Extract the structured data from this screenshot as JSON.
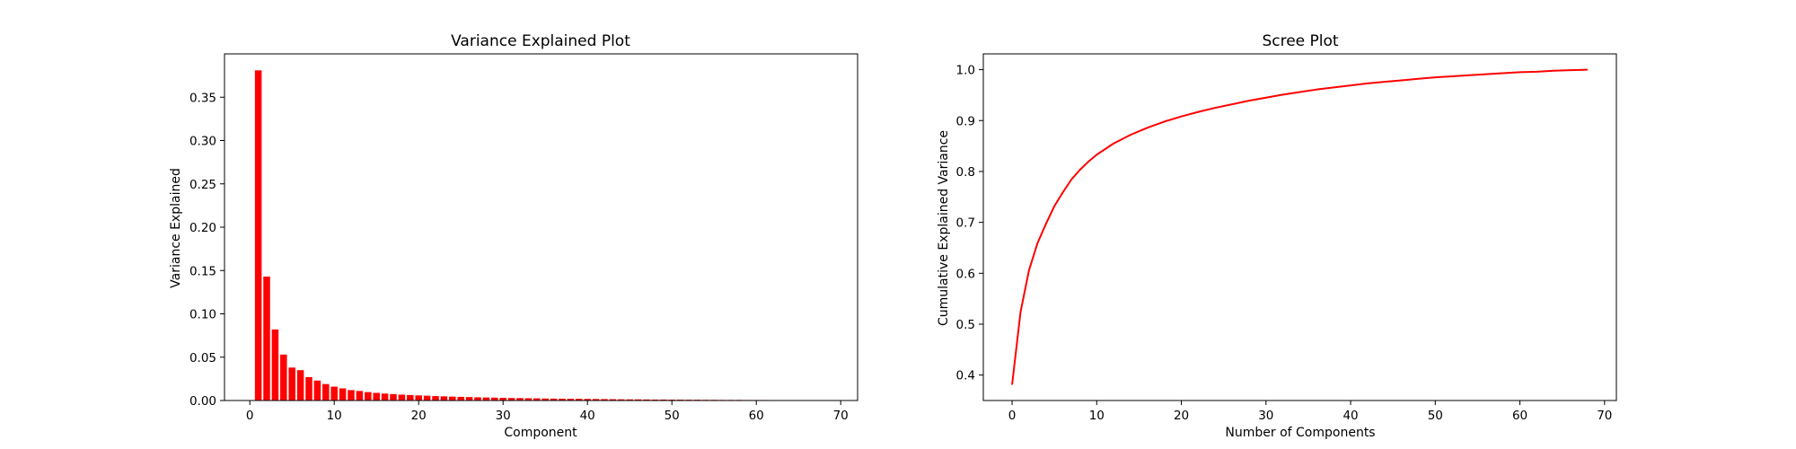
{
  "chart_data": [
    {
      "type": "bar",
      "title": "Variance Explained Plot",
      "xlabel": "Component",
      "ylabel": "Variance Explained",
      "xlim": [
        -3,
        72
      ],
      "ylim": [
        0,
        0.4
      ],
      "xticks": [
        "0",
        "10",
        "20",
        "30",
        "40",
        "50",
        "60",
        "70"
      ],
      "yticks": [
        "0.00",
        "0.05",
        "0.10",
        "0.15",
        "0.20",
        "0.25",
        "0.30",
        "0.35"
      ],
      "color": "#ff0000",
      "x": [
        1,
        2,
        3,
        4,
        5,
        6,
        7,
        8,
        9,
        10,
        11,
        12,
        13,
        14,
        15,
        16,
        17,
        18,
        19,
        20,
        21,
        22,
        23,
        24,
        25,
        26,
        27,
        28,
        29,
        30,
        31,
        32,
        33,
        34,
        35,
        36,
        37,
        38,
        39,
        40,
        41,
        42,
        43,
        44,
        45,
        46,
        47,
        48,
        49,
        50,
        51,
        52,
        53,
        54,
        55,
        56,
        57,
        58,
        59,
        60,
        61,
        62,
        63,
        64,
        65
      ],
      "values": [
        0.381,
        0.143,
        0.082,
        0.053,
        0.038,
        0.035,
        0.027,
        0.023,
        0.019,
        0.016,
        0.014,
        0.012,
        0.011,
        0.0097,
        0.0088,
        0.008,
        0.0074,
        0.0068,
        0.0063,
        0.0059,
        0.0055,
        0.0051,
        0.0048,
        0.0045,
        0.0042,
        0.004,
        0.0037,
        0.0035,
        0.0033,
        0.0031,
        0.0029,
        0.0028,
        0.0026,
        0.0025,
        0.0023,
        0.0022,
        0.0021,
        0.002,
        0.0019,
        0.0018,
        0.0017,
        0.0016,
        0.0015,
        0.0014,
        0.0013,
        0.0013,
        0.0012,
        0.0011,
        0.0011,
        0.001,
        0.001,
        0.0009,
        0.0009,
        0.0008,
        0.0008,
        0.0007,
        0.0007,
        0.0007,
        0.0006,
        0.0006,
        0.0006,
        0.0005,
        0.0005,
        0.0005,
        0.0004
      ]
    },
    {
      "type": "line",
      "title": "Scree Plot",
      "xlabel": "Number of Components",
      "ylabel": "Cumulative Explained Variance",
      "xlim": [
        -3.4,
        71.4
      ],
      "ylim": [
        0.35,
        1.031
      ],
      "xticks": [
        "0",
        "10",
        "20",
        "30",
        "40",
        "50",
        "60",
        "70"
      ],
      "yticks": [
        "0.4",
        "0.5",
        "0.6",
        "0.7",
        "0.8",
        "0.9",
        "1.0"
      ],
      "color": "#ff0000",
      "x": [
        0,
        1,
        2,
        3,
        4,
        5,
        6,
        7,
        8,
        9,
        10,
        12,
        14,
        16,
        18,
        20,
        22,
        24,
        26,
        28,
        30,
        32,
        34,
        36,
        38,
        40,
        42,
        44,
        46,
        48,
        50,
        52,
        54,
        56,
        58,
        60,
        62,
        64,
        66,
        68
      ],
      "values": [
        0.381,
        0.524,
        0.606,
        0.659,
        0.697,
        0.732,
        0.759,
        0.784,
        0.803,
        0.819,
        0.833,
        0.855,
        0.872,
        0.886,
        0.898,
        0.908,
        0.917,
        0.925,
        0.932,
        0.939,
        0.945,
        0.951,
        0.956,
        0.961,
        0.965,
        0.969,
        0.973,
        0.976,
        0.979,
        0.982,
        0.985,
        0.987,
        0.989,
        0.991,
        0.993,
        0.995,
        0.996,
        0.998,
        0.999,
        1.0
      ]
    }
  ]
}
